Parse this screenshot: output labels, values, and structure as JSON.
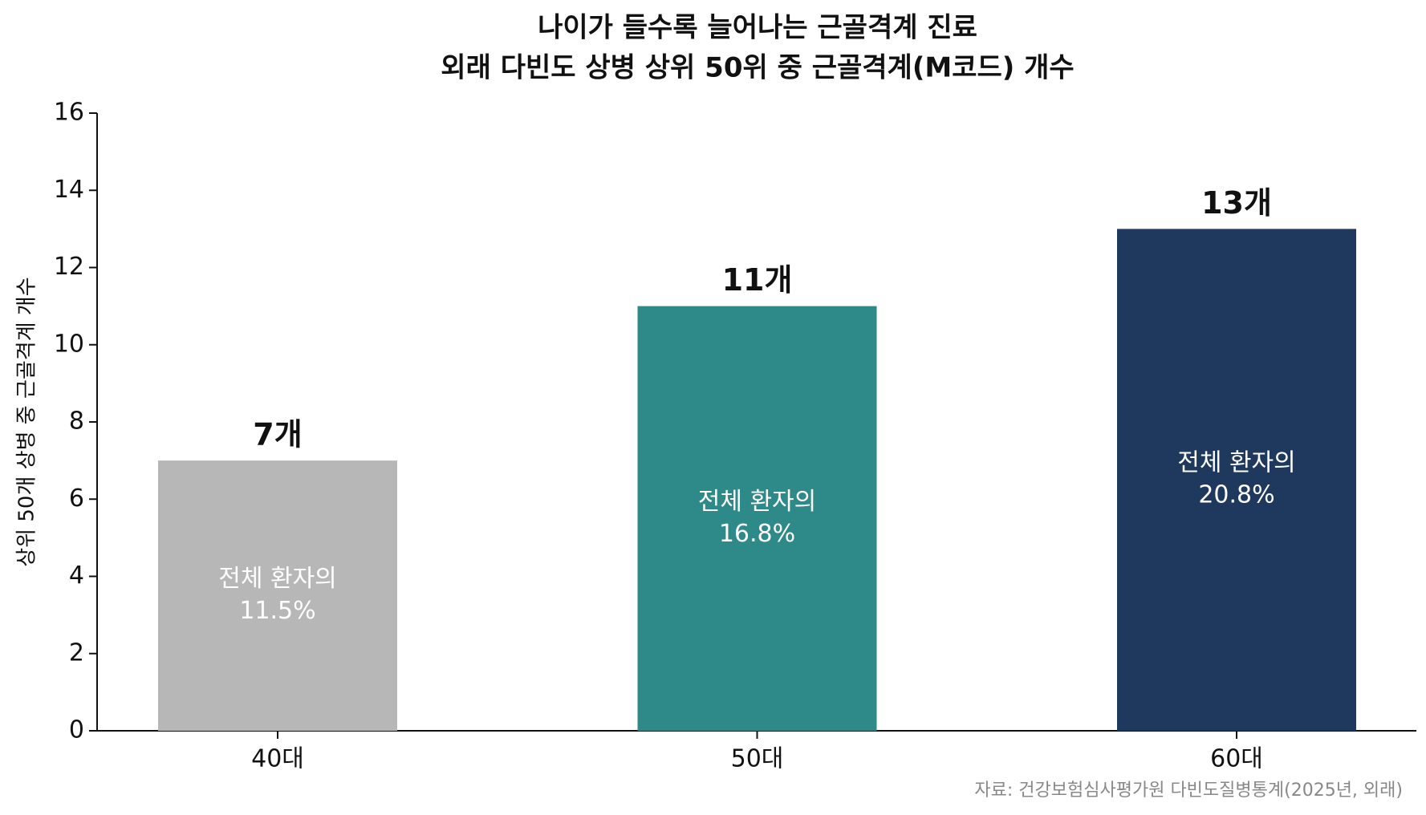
{
  "chart_data": {
    "type": "bar",
    "title": [
      "나이가 들수록 늘어나는 근골격계 진료",
      "외래 다빈도 상병 상위 50위 중 근골격계(M코드) 개수"
    ],
    "ylabel": "상위 50개 상병 중 근골격계 개수",
    "categories": [
      "40대",
      "50대",
      "60대"
    ],
    "values": [
      7,
      11,
      13
    ],
    "value_labels": [
      "7개",
      "11개",
      "13개"
    ],
    "inner_labels": [
      [
        "전체 환자의",
        "11.5%"
      ],
      [
        "전체 환자의",
        "16.8%"
      ],
      [
        "전체 환자의",
        "20.8%"
      ]
    ],
    "colors": [
      "#b7b7b7",
      "#2e8a89",
      "#1f385d"
    ],
    "ylim": [
      0,
      16
    ],
    "yticks": [
      0,
      2,
      4,
      6,
      8,
      10,
      12,
      14,
      16
    ],
    "grid": false,
    "source": "자료: 건강보험심사평가원 다빈도질병통계(2025년, 외래)"
  }
}
